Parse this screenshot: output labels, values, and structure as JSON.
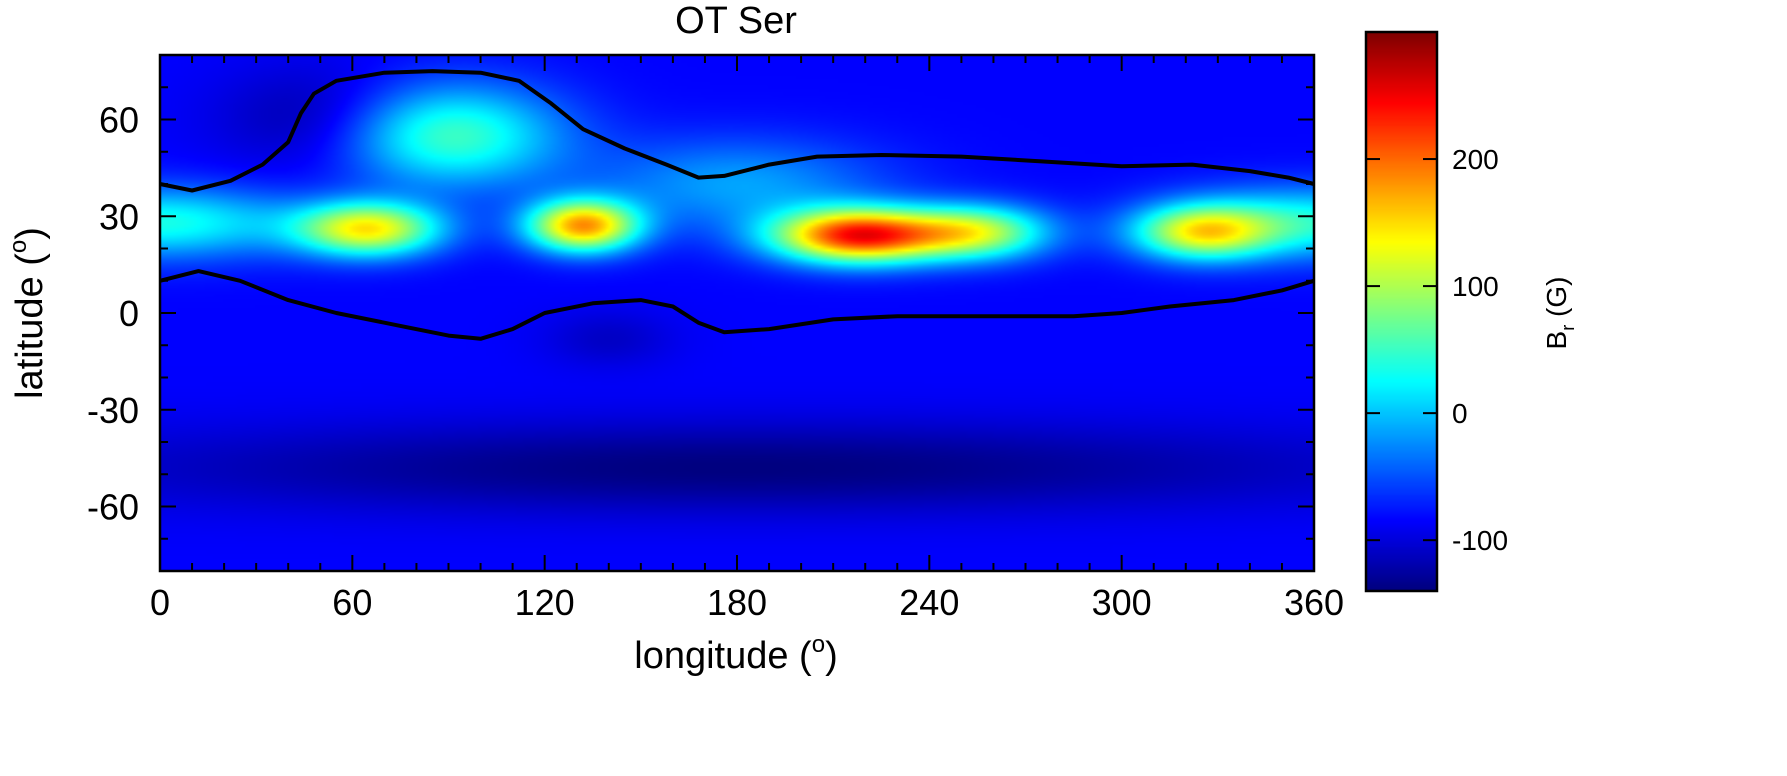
{
  "chart_data": {
    "type": "heatmap",
    "title": "OT Ser",
    "xlabel": "longitude",
    "xlabel_unit": "o",
    "ylabel": "latitude",
    "ylabel_unit": "o",
    "xlim": [
      0,
      360
    ],
    "ylim": [
      -80,
      80
    ],
    "x_ticks": [
      0,
      60,
      120,
      180,
      240,
      300,
      360
    ],
    "y_ticks": [
      -60,
      -30,
      0,
      30,
      60
    ],
    "colorbar": {
      "label_main": "B",
      "label_sub": "r",
      "label_unit": "(G)",
      "range": [
        -140,
        300
      ],
      "ticks": [
        -100,
        0,
        100,
        200
      ],
      "colormap": "jet"
    },
    "field": {
      "background": -85,
      "features": [
        {
          "name": "northern-cap",
          "lon": 50,
          "lat": 60,
          "dlon": 900,
          "dlat": 260,
          "amp": -45
        },
        {
          "name": "mid-latitude-band",
          "lon": 180,
          "lat": 40,
          "dlon": 2000,
          "dlat": 200,
          "amp": 70
        },
        {
          "name": "plateau-north",
          "lon": 90,
          "lat": 55,
          "dlon": 1200,
          "dlat": 250,
          "amp": 140
        },
        {
          "name": "ring-west",
          "lon": 0,
          "lat": 28,
          "dlon": 1800,
          "dlat": 120,
          "amp": 120
        },
        {
          "name": "ring-east",
          "lon": 360,
          "lat": 28,
          "dlon": 1800,
          "dlat": 120,
          "amp": 120
        },
        {
          "name": "spot-65",
          "lon": 65,
          "lat": 26,
          "dlon": 500,
          "dlat": 70,
          "amp": 220
        },
        {
          "name": "spot-130",
          "lon": 132,
          "lat": 27,
          "dlon": 300,
          "dlat": 65,
          "amp": 260
        },
        {
          "name": "spot-220",
          "lon": 218,
          "lat": 24,
          "dlon": 700,
          "dlat": 70,
          "amp": 320
        },
        {
          "name": "spot-255",
          "lon": 255,
          "lat": 25,
          "dlon": 500,
          "dlat": 70,
          "amp": 180
        },
        {
          "name": "spot-325",
          "lon": 325,
          "lat": 25,
          "dlon": 450,
          "dlat": 70,
          "amp": 190
        },
        {
          "name": "southern-minimum",
          "lon": 180,
          "lat": -48,
          "dlon": 40000,
          "dlat": 200,
          "amp": -55
        },
        {
          "name": "equator-dip-140",
          "lon": 140,
          "lat": -8,
          "dlon": 400,
          "dlat": 80,
          "amp": -25
        }
      ]
    },
    "zero_contours": [
      {
        "name": "northern-boundary",
        "points": [
          [
            0,
            40
          ],
          [
            10,
            38
          ],
          [
            22,
            41
          ],
          [
            32,
            46
          ],
          [
            40,
            53
          ],
          [
            44,
            62
          ],
          [
            48,
            68
          ],
          [
            55,
            72
          ],
          [
            70,
            74.5
          ],
          [
            85,
            75
          ],
          [
            100,
            74.5
          ],
          [
            112,
            72
          ],
          [
            122,
            65
          ],
          [
            132,
            57
          ],
          [
            145,
            51
          ],
          [
            158,
            46
          ],
          [
            168,
            42
          ],
          [
            176,
            42.5
          ],
          [
            190,
            46
          ],
          [
            205,
            48.5
          ],
          [
            225,
            49
          ],
          [
            250,
            48.5
          ],
          [
            275,
            47
          ],
          [
            300,
            45.5
          ],
          [
            322,
            46
          ],
          [
            340,
            44
          ],
          [
            352,
            42
          ],
          [
            360,
            40
          ]
        ]
      },
      {
        "name": "southern-boundary",
        "points": [
          [
            0,
            10
          ],
          [
            12,
            13
          ],
          [
            25,
            10
          ],
          [
            40,
            4
          ],
          [
            55,
            0
          ],
          [
            75,
            -4
          ],
          [
            90,
            -7
          ],
          [
            100,
            -8
          ],
          [
            110,
            -5
          ],
          [
            120,
            0
          ],
          [
            135,
            3
          ],
          [
            150,
            4
          ],
          [
            160,
            2
          ],
          [
            168,
            -3
          ],
          [
            176,
            -6
          ],
          [
            190,
            -5
          ],
          [
            210,
            -2
          ],
          [
            230,
            -1
          ],
          [
            260,
            -1
          ],
          [
            285,
            -1
          ],
          [
            300,
            0
          ],
          [
            315,
            2
          ],
          [
            335,
            4
          ],
          [
            350,
            7
          ],
          [
            360,
            10
          ]
        ]
      }
    ]
  }
}
